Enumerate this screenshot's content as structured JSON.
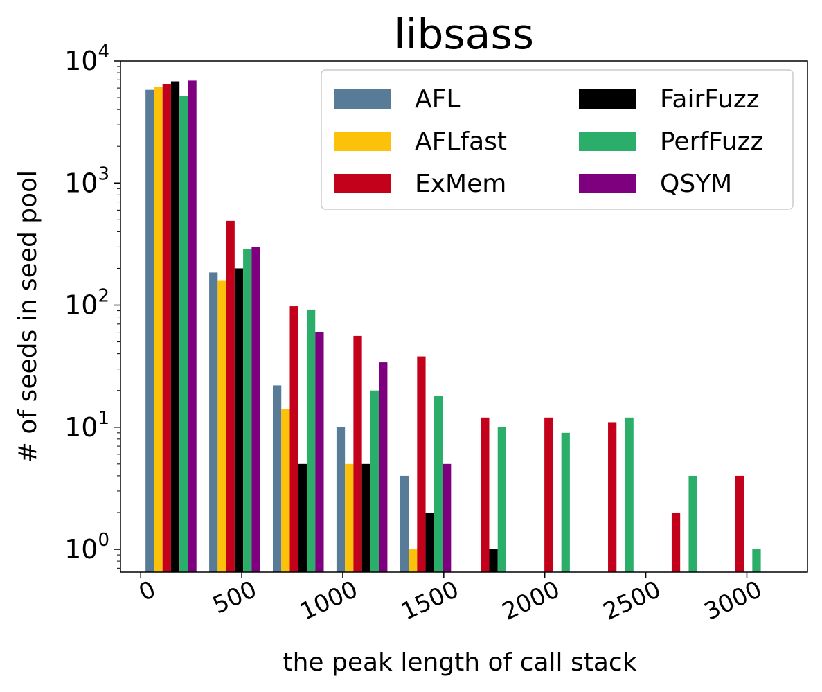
{
  "chart_data": {
    "type": "bar",
    "title": "libsass",
    "xlabel": "the peak length of call stack",
    "ylabel": "# of seeds in seed pool",
    "yscale": "log",
    "ylim": [
      0.65,
      10000
    ],
    "xlim": [
      -100,
      3300
    ],
    "x_ticks": [
      0,
      500,
      1000,
      1500,
      2000,
      2500,
      3000
    ],
    "y_ticks": [
      {
        "value": 1,
        "base": "10",
        "exp": "0"
      },
      {
        "value": 10,
        "base": "10",
        "exp": "1"
      },
      {
        "value": 100,
        "base": "10",
        "exp": "2"
      },
      {
        "value": 1000,
        "base": "10",
        "exp": "3"
      },
      {
        "value": 10000,
        "base": "10",
        "exp": "4"
      }
    ],
    "bin_centers": [
      150,
      465,
      780,
      1095,
      1410,
      1725,
      2040,
      2355,
      2670,
      2985
    ],
    "bar_width": 42,
    "legend": {
      "placement": "top-right",
      "columns": 2
    },
    "series": [
      {
        "name": "AFL",
        "color": "#587b98",
        "values": [
          5800,
          185,
          22,
          10,
          4,
          null,
          null,
          null,
          null,
          null
        ]
      },
      {
        "name": "AFLfast",
        "color": "#fcc10a",
        "values": [
          6100,
          160,
          14,
          5,
          1,
          null,
          null,
          null,
          null,
          null
        ]
      },
      {
        "name": "ExMem",
        "color": "#c4011a",
        "values": [
          6500,
          490,
          98,
          56,
          38,
          12,
          12,
          11,
          2,
          4
        ]
      },
      {
        "name": "FairFuzz",
        "color": "#000000",
        "values": [
          6800,
          200,
          5,
          5,
          2,
          1,
          null,
          null,
          null,
          null
        ]
      },
      {
        "name": "PerfFuzz",
        "color": "#2aae6a",
        "values": [
          5200,
          290,
          92,
          20,
          18,
          10,
          9,
          12,
          4,
          1
        ]
      },
      {
        "name": "QSYM",
        "color": "#7e007e",
        "values": [
          6900,
          300,
          60,
          34,
          5,
          null,
          null,
          null,
          null,
          null
        ]
      }
    ]
  }
}
